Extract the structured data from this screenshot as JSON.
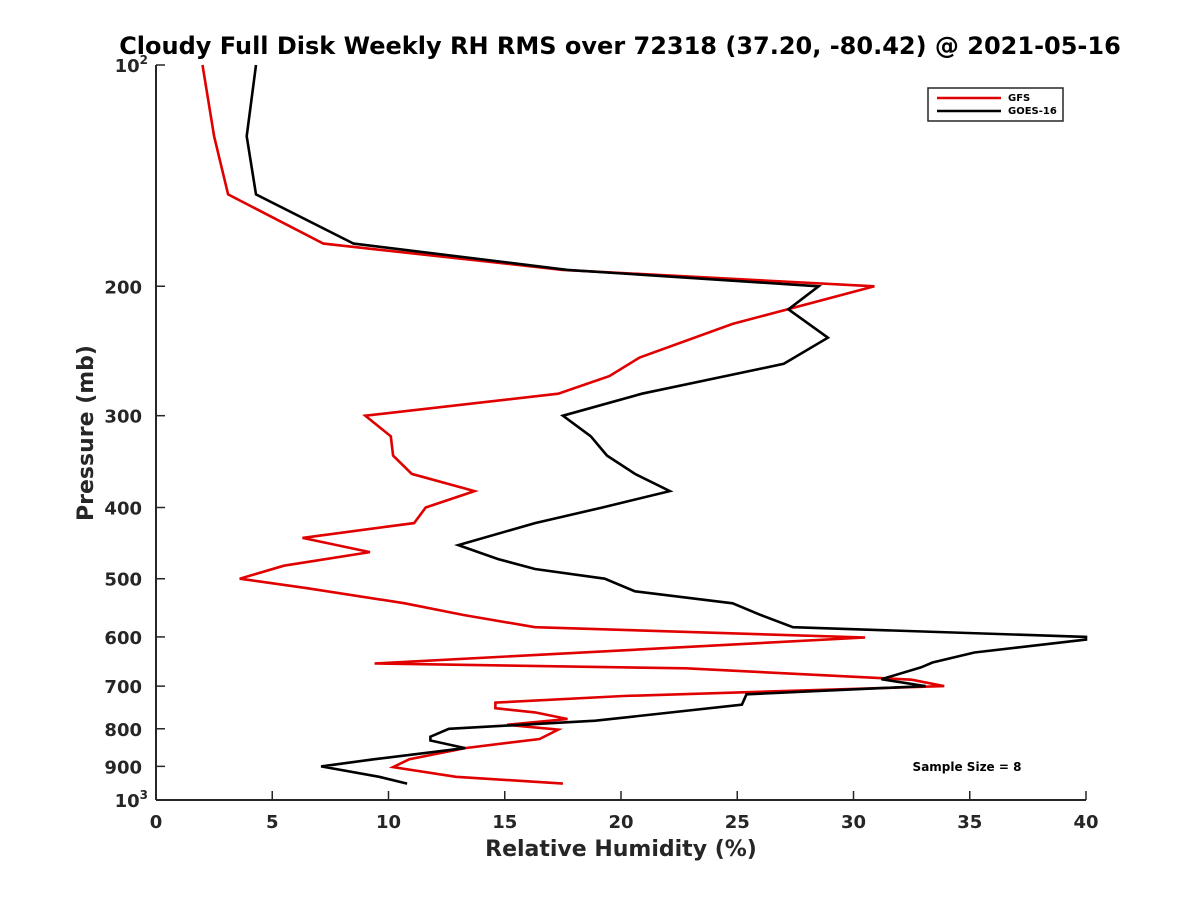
{
  "chart_data": {
    "type": "line",
    "title": "Cloudy Full Disk Weekly RH RMS over 72318 (37.20, -80.42) @ 2021-05-16",
    "xlabel": "Relative Humidity (%)",
    "ylabel": "Pressure (mb)",
    "xlim": [
      0,
      40
    ],
    "ylim": [
      100,
      1000
    ],
    "y_scale": "log",
    "y_reversed": true,
    "x_ticks": [
      0,
      5,
      10,
      15,
      20,
      25,
      30,
      35,
      40
    ],
    "y_ticks": [
      200,
      300,
      400,
      500,
      600,
      700,
      800,
      900
    ],
    "y_tick_labels": [
      "200",
      "300",
      "400",
      "500",
      "600",
      "700",
      "800",
      "900"
    ],
    "y_log_tick_labels": [
      {
        "value": 100,
        "base": "10",
        "exp": "2"
      },
      {
        "value": 1000,
        "base": "10",
        "exp": "3"
      }
    ],
    "grid": false,
    "legend_position": "top-right",
    "annotation": "Sample Size = 8",
    "series": [
      {
        "name": "GFS",
        "color": "#e00000",
        "points": [
          [
            2.0,
            100
          ],
          [
            2.5,
            125
          ],
          [
            3.1,
            150
          ],
          [
            7.2,
            175
          ],
          [
            17.5,
            190
          ],
          [
            30.9,
            200
          ],
          [
            24.8,
            225
          ],
          [
            20.8,
            250
          ],
          [
            19.5,
            265
          ],
          [
            17.3,
            280
          ],
          [
            9.0,
            300
          ],
          [
            10.1,
            320
          ],
          [
            10.2,
            340
          ],
          [
            11.0,
            360
          ],
          [
            13.7,
            380
          ],
          [
            11.6,
            400
          ],
          [
            11.1,
            420
          ],
          [
            6.3,
            440
          ],
          [
            9.2,
            460
          ],
          [
            5.5,
            480
          ],
          [
            3.6,
            500
          ],
          [
            6.5,
            515
          ],
          [
            10.7,
            540
          ],
          [
            13.2,
            560
          ],
          [
            16.3,
            582
          ],
          [
            30.5,
            601
          ],
          [
            9.4,
            652
          ],
          [
            22.8,
            662
          ],
          [
            32.5,
            686
          ],
          [
            33.9,
            700
          ],
          [
            20.1,
            722
          ],
          [
            14.6,
            737
          ],
          [
            14.6,
            750
          ],
          [
            16.3,
            760
          ],
          [
            17.7,
            776
          ],
          [
            15.1,
            790
          ],
          [
            17.3,
            802
          ],
          [
            16.5,
            826
          ],
          [
            13.3,
            850
          ],
          [
            10.9,
            880
          ],
          [
            10.2,
            902
          ],
          [
            12.9,
            930
          ],
          [
            17.5,
            950
          ]
        ]
      },
      {
        "name": "GOES-16",
        "color": "#000000",
        "points": [
          [
            4.3,
            100
          ],
          [
            3.9,
            125
          ],
          [
            4.3,
            150
          ],
          [
            8.5,
            175
          ],
          [
            17.7,
            190
          ],
          [
            28.5,
            200
          ],
          [
            27.2,
            215
          ],
          [
            28.9,
            235
          ],
          [
            27.0,
            255
          ],
          [
            20.9,
            280
          ],
          [
            17.5,
            300
          ],
          [
            18.7,
            320
          ],
          [
            19.4,
            340
          ],
          [
            20.6,
            360
          ],
          [
            22.1,
            380
          ],
          [
            19.2,
            400
          ],
          [
            16.3,
            420
          ],
          [
            13.0,
            450
          ],
          [
            14.7,
            470
          ],
          [
            16.3,
            485
          ],
          [
            19.3,
            500
          ],
          [
            20.6,
            520
          ],
          [
            24.8,
            540
          ],
          [
            26.0,
            560
          ],
          [
            27.4,
            582
          ],
          [
            40.0,
            600
          ],
          [
            40.0,
            605
          ],
          [
            35.2,
            630
          ],
          [
            33.4,
            650
          ],
          [
            32.9,
            660
          ],
          [
            31.2,
            685
          ],
          [
            33.1,
            700
          ],
          [
            25.4,
            718
          ],
          [
            25.2,
            742
          ],
          [
            18.9,
            780
          ],
          [
            12.6,
            800
          ],
          [
            11.8,
            820
          ],
          [
            11.8,
            830
          ],
          [
            13.3,
            850
          ],
          [
            9.4,
            880
          ],
          [
            7.1,
            900
          ],
          [
            9.6,
            930
          ],
          [
            10.8,
            950
          ]
        ]
      }
    ]
  }
}
